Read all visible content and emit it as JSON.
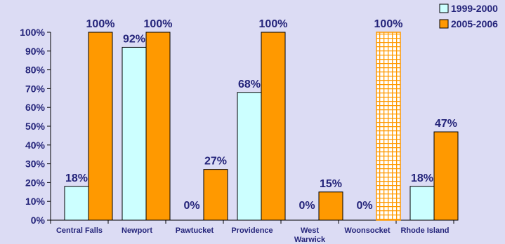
{
  "chart_data": {
    "type": "bar",
    "categories": [
      "Central Falls",
      "Newport",
      "Pawtucket",
      "Providence",
      "West Warwick",
      "Woonsocket",
      "Rhode Island"
    ],
    "category_lines": [
      [
        "Central Falls"
      ],
      [
        "Newport"
      ],
      [
        "Pawtucket"
      ],
      [
        "Providence"
      ],
      [
        "West",
        "Warwick"
      ],
      [
        "Woonsocket"
      ],
      [
        "Rhode Island"
      ]
    ],
    "series": [
      {
        "name": "1999-2000",
        "values": [
          18,
          92,
          0,
          68,
          0,
          0,
          18
        ],
        "labels": [
          "18%",
          "92%",
          "0%",
          "68%",
          "0%",
          "0%",
          "18%"
        ],
        "color": "#ccffff"
      },
      {
        "name": "2005-2006",
        "values": [
          100,
          100,
          27,
          100,
          15,
          100,
          47
        ],
        "labels": [
          "100%",
          "100%",
          "27%",
          "100%",
          "15%",
          "100%",
          "47%"
        ],
        "color": "#ff9900"
      }
    ],
    "hatched_bar": {
      "series": 1,
      "category": 5,
      "color": "#ff9900"
    },
    "yticks": [
      "0%",
      "10%",
      "20%",
      "30%",
      "40%",
      "50%",
      "60%",
      "70%",
      "80%",
      "90%",
      "100%"
    ],
    "ylim": [
      0,
      100
    ],
    "legend_position": "top-right",
    "grid": false
  }
}
